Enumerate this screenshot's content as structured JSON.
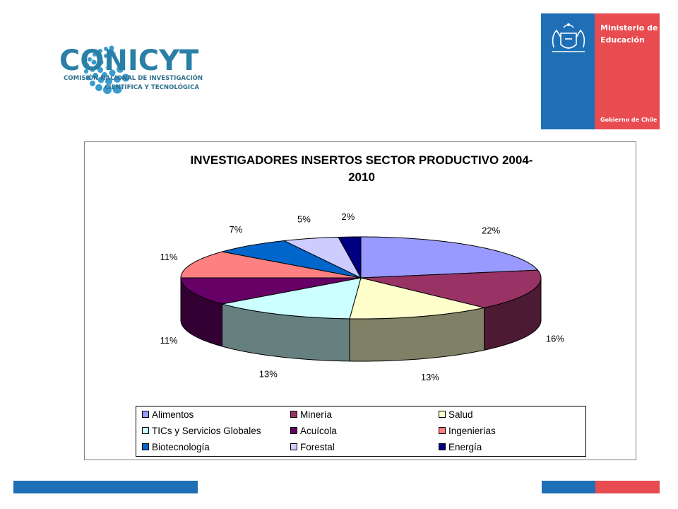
{
  "header": {
    "logo_name": "CONICYT",
    "logo_subtitle_line1": "COMISIÓN NACIONAL DE INVESTIGACIÓN",
    "logo_subtitle_line2": "CIENTÍFICA Y TECNOLÓGICA",
    "ministry_line1": "Ministerio de",
    "ministry_line2": "Educación",
    "government": "Gobierno de Chile",
    "ministry_colors": {
      "blue": "#1f6fb7",
      "red": "#e84b50"
    }
  },
  "chart_data": {
    "type": "pie",
    "variant": "3d-exploded-none",
    "title_line1": "INVESTIGADORES INSERTOS SECTOR PRODUCTIVO 2004-",
    "title_line2": "2010",
    "slices": [
      {
        "name": "Alimentos",
        "value": 22,
        "label": "22%",
        "color": "#9999ff"
      },
      {
        "name": "Minería",
        "value": 16,
        "label": "16%",
        "color": "#993366"
      },
      {
        "name": "Salud",
        "value": 13,
        "label": "13%",
        "color": "#ffffcc"
      },
      {
        "name": "TICs y Servicios Globales",
        "value": 13,
        "label": "13%",
        "color": "#ccffff"
      },
      {
        "name": "Acuícola",
        "value": 11,
        "label": "11%",
        "color": "#660066"
      },
      {
        "name": "Ingenierías",
        "value": 11,
        "label": "11%",
        "color": "#ff8080"
      },
      {
        "name": "Biotecnología",
        "value": 7,
        "label": "7%",
        "color": "#0066cc"
      },
      {
        "name": "Forestal",
        "value": 5,
        "label": "5%",
        "color": "#ccccff"
      },
      {
        "name": "Energía",
        "value": 2,
        "label": "2%",
        "color": "#000080"
      }
    ],
    "legend_position": "bottom",
    "legend_columns": 3
  }
}
